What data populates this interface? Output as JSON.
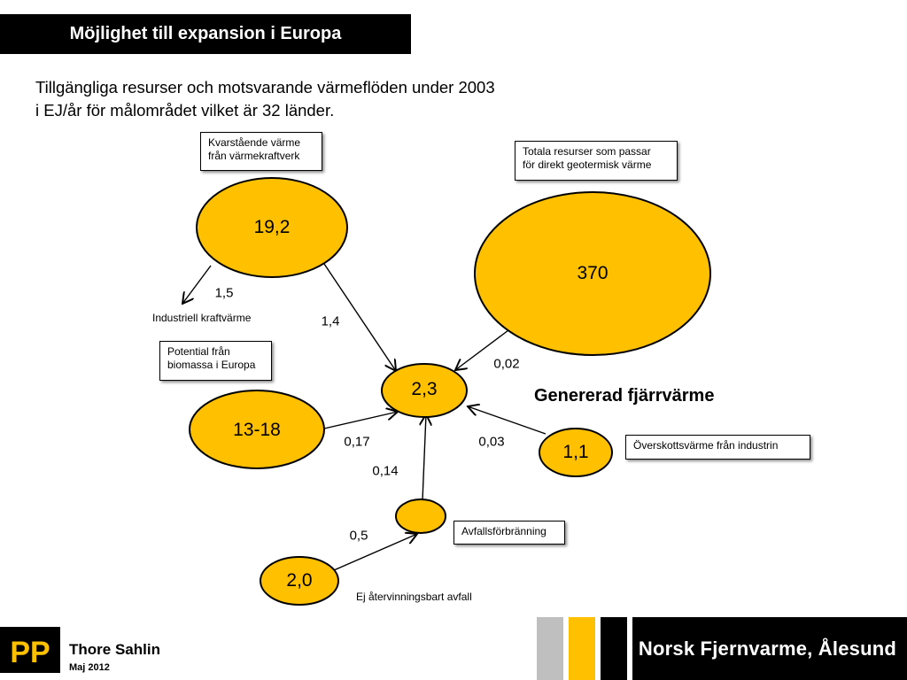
{
  "slide": {
    "title": "Möjlighet till expansion i Europa",
    "subtitle_line1": "Tillgängliga resurser och motsvarande värmeflöden under 2003",
    "subtitle_line2": "i EJ/år för målområdet vilket är 32 länder."
  },
  "nodes": {
    "chp": "19,2",
    "geothermal": "370",
    "center": "2,3",
    "biomass": "13-18",
    "industry": "1,1",
    "waste_incineration": "",
    "non_recyclable": "2,0"
  },
  "flows": {
    "chp_to_industrial": "1,5",
    "chp_to_center": "1,4",
    "geothermal_to_center": "0,02",
    "biomass_to_center": "0,17",
    "industry_to_center": "0,03",
    "waste_to_center": "0,14",
    "nonrecyclable_to_waste": "0,5"
  },
  "boxes": {
    "chp_line1": "Kvarstående värme",
    "chp_line2": "från värmekraftverk",
    "geo_line1": "Totala resurser som passar",
    "geo_line2": "för direkt geotermisk värme",
    "bio_line1": "Potential från",
    "bio_line2": "biomassa i Europa",
    "industry": "Överskottsvärme från industrin",
    "waste": "Avfallsförbränning"
  },
  "labels": {
    "industrial_chp": "Industriell kraftvärme",
    "non_recyclable": "Ej återvinningsbart avfall",
    "generated_heating": "Genererad fjärrvärme"
  },
  "footer": {
    "logo_text": "PP",
    "name": "Thore Sahlin",
    "date": "Maj  2012",
    "brand": "Norsk Fjernvarme, Ålesund"
  },
  "colors": {
    "node_fill": "#FFC000",
    "stripe_gray": "#BFBFBF",
    "stripe_yellow": "#FFC000",
    "dark": "#000000"
  }
}
